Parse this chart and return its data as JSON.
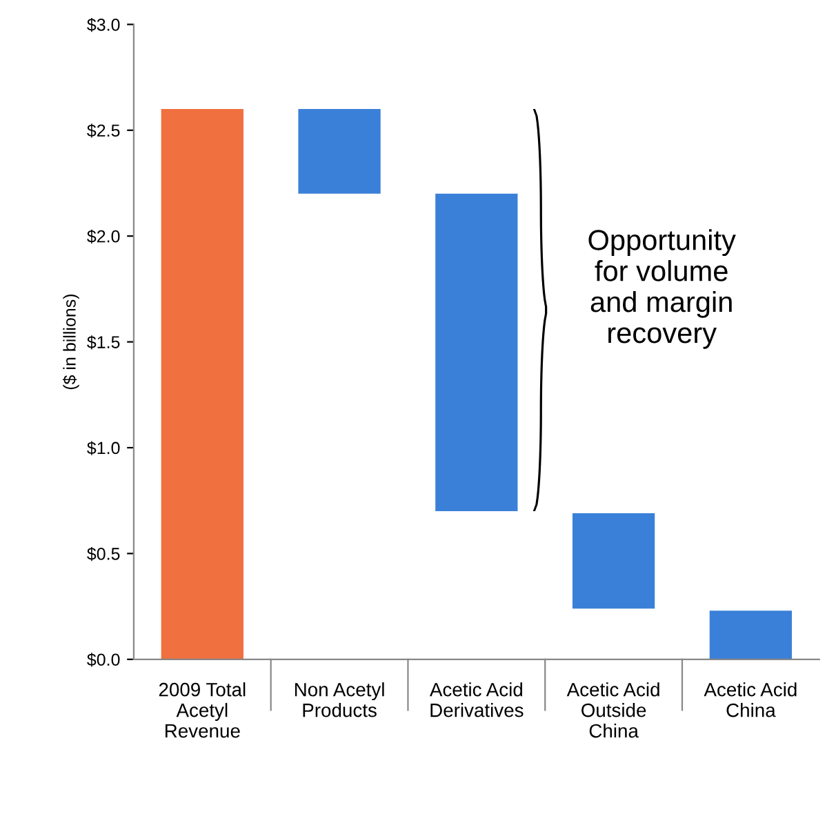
{
  "chart_data": {
    "type": "bar",
    "categories": [
      "2009 Total Acetyl Revenue",
      "Non Acetyl Products",
      "Acetic Acid Derivatives",
      "Acetic Acid Outside China",
      "Acetic Acid China"
    ],
    "values": [
      2.6,
      0.4,
      1.5,
      0.45,
      0.23
    ],
    "base": [
      0,
      2.2,
      0.7,
      0.24,
      0
    ],
    "colors": [
      "#f07040",
      "#3a80d8",
      "#3a80d8",
      "#3a80d8",
      "#3a80d8"
    ],
    "ylabel": "($ in billions)",
    "ylim": [
      0,
      3.0
    ],
    "yticks": [
      {
        "value": 0,
        "label": "$0.0"
      },
      {
        "value": 0.5,
        "label": "$0.5"
      },
      {
        "value": 1.0,
        "label": "$1.0"
      },
      {
        "value": 1.5,
        "label": "$1.5"
      },
      {
        "value": 2.0,
        "label": "$2.0"
      },
      {
        "value": 2.5,
        "label": "$2.5"
      },
      {
        "value": 3.0,
        "label": "$3.0"
      }
    ],
    "annotations": [
      "Opportunity for volume and margin recovery"
    ],
    "grid": false
  }
}
